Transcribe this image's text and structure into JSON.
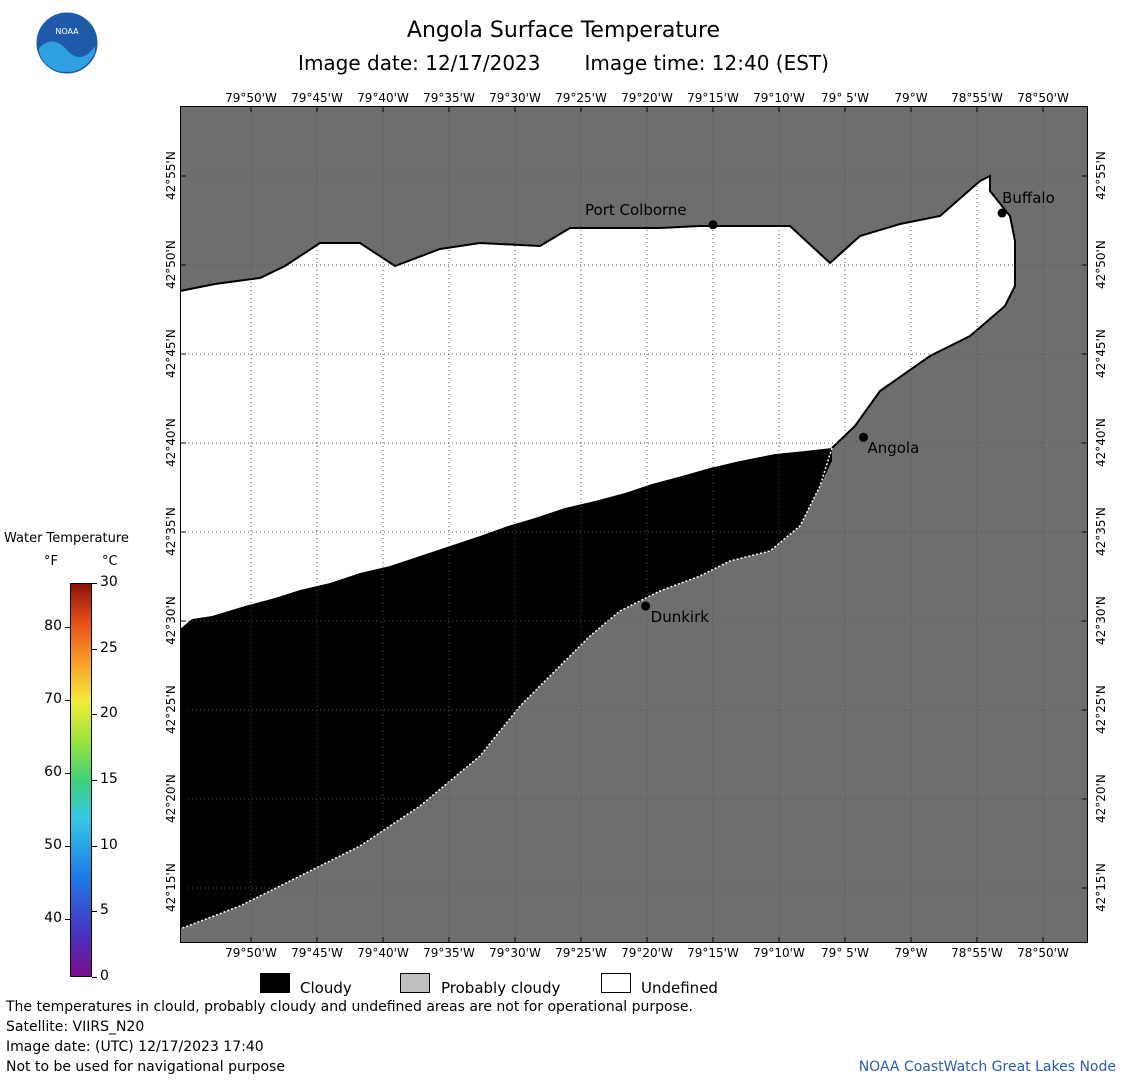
{
  "header": {
    "title": "Angola Surface Temperature",
    "image_date": "Image date: 12/17/2023",
    "image_time": "Image time: 12:40 (EST)"
  },
  "logo": {
    "label": "NOAA"
  },
  "map": {
    "lon_labels": [
      "79°50'W",
      "79°45'W",
      "79°40'W",
      "79°35'W",
      "79°30'W",
      "79°25'W",
      "79°20'W",
      "79°15'W",
      "79°10'W",
      "79° 5'W",
      "79°W",
      "78°55'W",
      "78°50'W"
    ],
    "lat_labels": [
      "42°55'N",
      "42°50'N",
      "42°45'N",
      "42°40'N",
      "42°35'N",
      "42°30'N",
      "42°25'N",
      "42°20'N",
      "42°15'N"
    ],
    "cities": [
      {
        "name": "Port Colborne",
        "lon": -79.25,
        "lat": 42.871
      },
      {
        "name": "Buffalo",
        "lon": -78.885,
        "lat": 42.882
      },
      {
        "name": "Angola",
        "lon": -79.06,
        "lat": 42.672
      },
      {
        "name": "Dunkirk",
        "lon": -79.335,
        "lat": 42.514
      }
    ],
    "colors": {
      "land": "#6e6e6e",
      "cloudy": "#000000",
      "undefined": "#ffffff",
      "grid": "#555555"
    }
  },
  "legend": {
    "title": "Water Temperature",
    "unit_f": "°F",
    "unit_c": "°C",
    "ticks_f": [
      "80",
      "70",
      "60",
      "50",
      "40"
    ],
    "ticks_c": [
      "30",
      "25",
      "20",
      "15",
      "10",
      "5",
      "0"
    ],
    "categories": [
      {
        "label": "Cloudy",
        "color": "#000000"
      },
      {
        "label": "Probably cloudy",
        "color": "#c0c0c0"
      },
      {
        "label": "Undefined",
        "color": "#ffffff"
      }
    ]
  },
  "footer": {
    "disclaimer": "The temperatures in clould, probably cloudy and undefined areas are not for operational purpose.",
    "satellite": "Satellite: VIIRS_N20",
    "utc_date": "Image date: (UTC) 12/17/2023  17:40",
    "navigation": "Not to be used for navigational purpose",
    "credit": "NOAA CoastWatch Great Lakes Node"
  }
}
